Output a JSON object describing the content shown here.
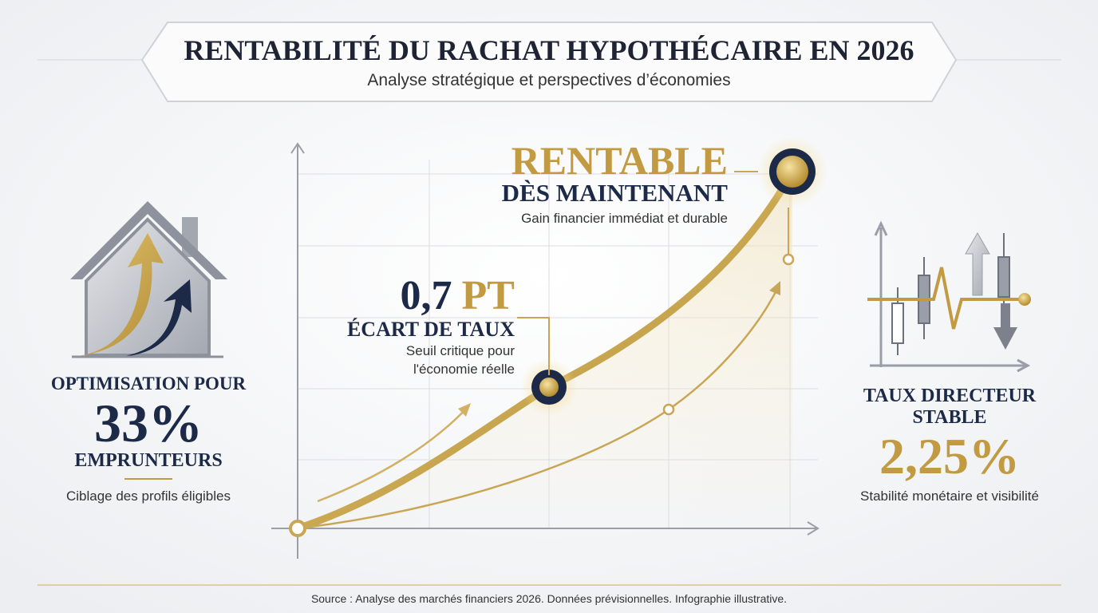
{
  "header": {
    "title": "RENTABILITÉ DU RACHAT HYPOTHÉCAIRE EN 2026",
    "subtitle": "Analyse stratégique et perspectives d’économies"
  },
  "left_panel": {
    "lead": "OPTIMISATION POUR",
    "figure": "33%",
    "label": "EMPRUNTEURS",
    "caption": "Ciblage des profils éligibles"
  },
  "top_callout": {
    "headline": "RENTABLE",
    "subheadline": "DÈS MAINTENANT",
    "caption": "Gain financier immédiat et durable"
  },
  "mid_callout": {
    "figure": "0,7",
    "unit": "PT",
    "label": "ÉCART DE TAUX",
    "caption_lines": [
      "Seuil critique pour",
      "l'économie réelle"
    ]
  },
  "right_panel": {
    "label_lines": [
      "TAUX DIRECTEUR",
      "STABLE"
    ],
    "figure": "2,25%",
    "caption": "Stabilité monétaire et visibilité"
  },
  "footer": {
    "source": "Source : Analyse des marchés financiers 2026. Données prévisionnelles. Infographie illustrative."
  }
}
